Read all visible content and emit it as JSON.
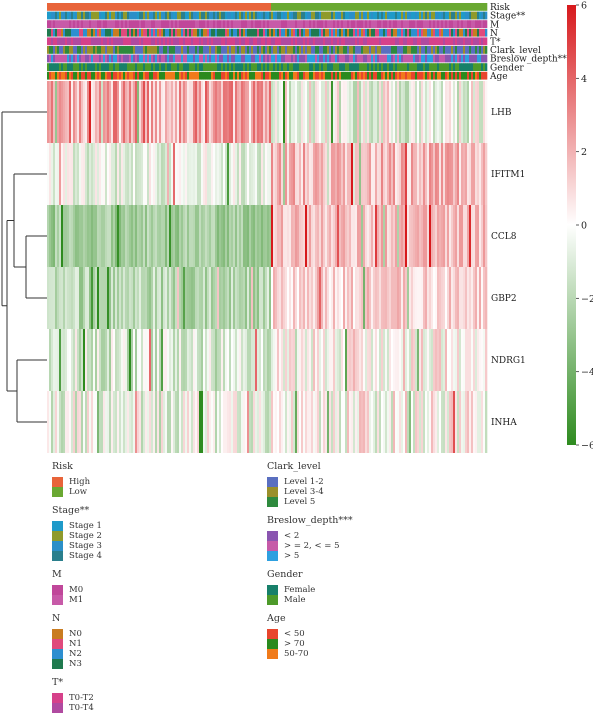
{
  "chart_data": {
    "type": "heatmap",
    "genes": [
      "LHB",
      "IFITM1",
      "CCL8",
      "GBP2",
      "NDRG1",
      "INHA"
    ],
    "annotation_tracks": [
      "Risk",
      "Stage**",
      "M",
      "N",
      "T*",
      "Clark_level",
      "Breslow_depth***",
      "Gender",
      "Age"
    ],
    "colorbar": {
      "ticks": [
        6,
        4,
        2,
        0,
        -2,
        -4,
        -6
      ],
      "range": [
        -6,
        6
      ],
      "colors": {
        "high": "#d7191c",
        "mid": "#ffffff",
        "low": "#2e8b1f"
      }
    },
    "risk_split_fraction": 0.51,
    "legends": [
      {
        "title": "Risk",
        "items": [
          {
            "label": "High",
            "color": "#e8643a"
          },
          {
            "label": "Low",
            "color": "#6aa832"
          }
        ]
      },
      {
        "title": "Stage**",
        "items": [
          {
            "label": "Stage 1",
            "color": "#1f9ac9"
          },
          {
            "label": "Stage 2",
            "color": "#8f9a2c"
          },
          {
            "label": "Stage 3",
            "color": "#2b8fc8"
          },
          {
            "label": "Stage 4",
            "color": "#2a7f8c"
          }
        ]
      },
      {
        "title": "M",
        "items": [
          {
            "label": "M0",
            "color": "#c0479a"
          },
          {
            "label": "M1",
            "color": "#c75aa8"
          }
        ]
      },
      {
        "title": "N",
        "items": [
          {
            "label": "N0",
            "color": "#c97c20"
          },
          {
            "label": "N1",
            "color": "#e04a7c"
          },
          {
            "label": "N2",
            "color": "#2d8fd0"
          },
          {
            "label": "N3",
            "color": "#1f7a4f"
          }
        ]
      },
      {
        "title": "T*",
        "items": [
          {
            "label": "T0-T2",
            "color": "#d6418a"
          },
          {
            "label": "T0-T4",
            "color": "#b04aa0"
          }
        ]
      },
      {
        "title": "Clark_level",
        "items": [
          {
            "label": "Level 1-2",
            "color": "#5a6fc0"
          },
          {
            "label": "Level 3-4",
            "color": "#9a8f2a"
          },
          {
            "label": "Level 5",
            "color": "#2e8a3e"
          }
        ]
      },
      {
        "title": "Breslow_depth***",
        "items": [
          {
            "label": "< 2",
            "color": "#8a55b0"
          },
          {
            "label": "> = 2, < = 5",
            "color": "#c65aa8"
          },
          {
            "label": "> 5",
            "color": "#2ea0e0"
          }
        ]
      },
      {
        "title": "Gender",
        "items": [
          {
            "label": "Female",
            "color": "#17806a"
          },
          {
            "label": "Male",
            "color": "#4d9a2a"
          }
        ]
      },
      {
        "title": "Age",
        "items": [
          {
            "label": "< 50",
            "color": "#e8452c"
          },
          {
            "label": "> 70",
            "color": "#2a8a1e"
          },
          {
            "label": "50-70",
            "color": "#f07a1a"
          }
        ]
      }
    ]
  }
}
